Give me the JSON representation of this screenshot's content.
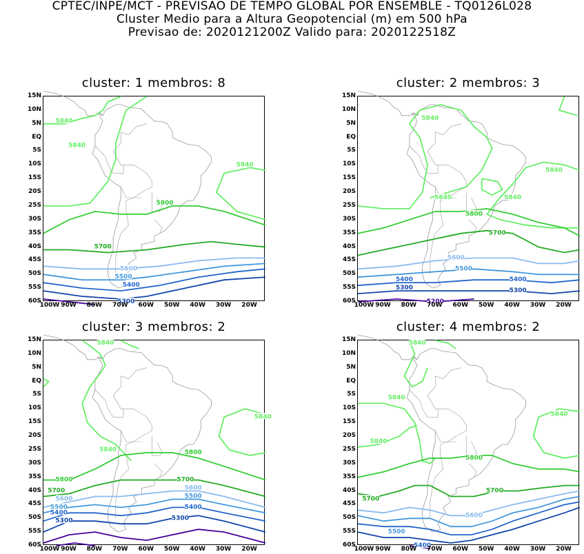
{
  "header": {
    "line1": "CPTEC/INPE/MCT - PREVISAO DE TEMPO GLOBAL POR ENSEMBLE - TQ0126L028",
    "line2": "Cluster Medio para a Altura Geopotencial (m) em 500 hPa",
    "line3": "Previsao de: 2020121200Z    Valido para: 2020122518Z"
  },
  "axes": {
    "lat_ticks": [
      "15N",
      "10N",
      "5N",
      "EQ",
      "5S",
      "10S",
      "15S",
      "20S",
      "25S",
      "30S",
      "35S",
      "40S",
      "45S",
      "50S",
      "55S",
      "60S"
    ],
    "lon_ticks": [
      "100W",
      "90W",
      "80W",
      "70W",
      "60W",
      "50W",
      "40W",
      "30W",
      "20W"
    ]
  },
  "colors": {
    "c5840": "#66ee66",
    "c5800": "#33cc33",
    "c5700": "#22aa22",
    "c5600": "#88bbee",
    "c5500": "#4499dd",
    "c5400": "#2266cc",
    "c5300": "#1144aa",
    "c5200": "#440099",
    "coast": "#999999"
  },
  "panels": [
    {
      "title": "cluster: 1   membros: 8",
      "labels": [
        "5840",
        "5840",
        "5840",
        "5800",
        "5700",
        "5600",
        "5500",
        "5400",
        "5300"
      ]
    },
    {
      "title": "cluster: 2   membros: 3",
      "labels": [
        "5840",
        "5840",
        "5840",
        "5840",
        "5800",
        "5700",
        "5600",
        "5500",
        "5400",
        "5300",
        "5400",
        "5300",
        "5200"
      ]
    },
    {
      "title": "cluster: 3   membros: 2",
      "labels": [
        "5840",
        "5840",
        "5840",
        "5800",
        "5800",
        "5700",
        "5700",
        "5600",
        "5600",
        "5500",
        "5500",
        "5400",
        "5400",
        "5300",
        "5300"
      ]
    },
    {
      "title": "cluster: 4   membros: 2",
      "labels": [
        "5840",
        "5840",
        "5840",
        "5840",
        "5800",
        "5700",
        "5700",
        "5600",
        "5500",
        "5400"
      ]
    }
  ]
}
